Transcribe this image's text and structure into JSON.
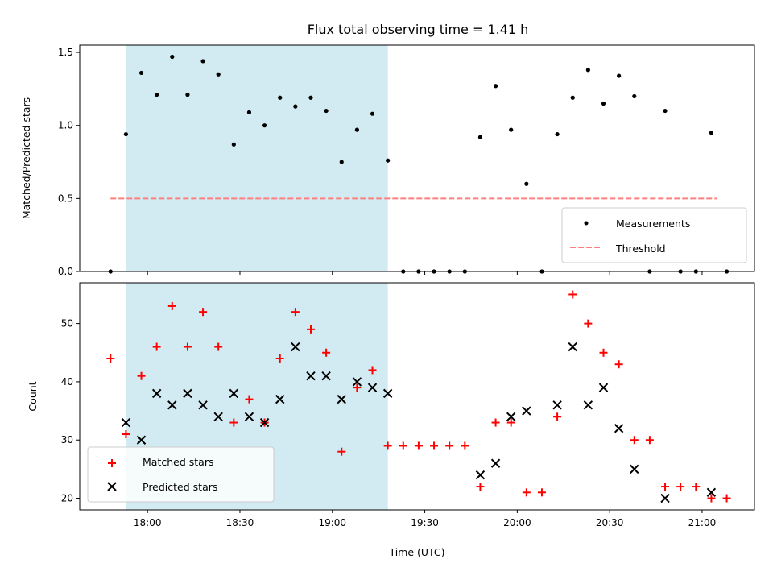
{
  "chart_data": [
    {
      "type": "scatter",
      "title": "Flux total observing time = 1.41 h",
      "xlabel": "",
      "ylabel": "Matched/Predicted stars",
      "ylim": [
        0,
        1.55
      ],
      "yticks": [
        "0.0",
        "0.5",
        "1.0",
        "1.5"
      ],
      "shaded_region": {
        "start": "17:53",
        "end": "19:18",
        "color": "#add8e6"
      },
      "legend_position": "lower-right",
      "threshold": {
        "name": "Threshold",
        "value": 0.5,
        "from": "17:48",
        "to": "21:05",
        "color": "#ff7f7f",
        "style": "dashed"
      },
      "series": [
        {
          "name": "Measurements",
          "color": "#000000",
          "marker": "dot",
          "x": [
            "17:48",
            "17:53",
            "17:58",
            "18:03",
            "18:08",
            "18:13",
            "18:18",
            "18:23",
            "18:28",
            "18:33",
            "18:38",
            "18:43",
            "18:48",
            "18:53",
            "18:58",
            "19:03",
            "19:08",
            "19:13",
            "19:18",
            "19:23",
            "19:28",
            "19:33",
            "19:38",
            "19:43",
            "19:48",
            "19:53",
            "19:58",
            "20:03",
            "20:08",
            "20:13",
            "20:18",
            "20:23",
            "20:28",
            "20:33",
            "20:38",
            "20:43",
            "20:48",
            "20:53",
            "20:58",
            "21:03",
            "21:08"
          ],
          "values": [
            0,
            0.94,
            1.36,
            1.21,
            1.47,
            1.21,
            1.44,
            1.35,
            0.87,
            1.09,
            1.0,
            1.19,
            1.13,
            1.19,
            1.1,
            0.75,
            0.97,
            1.08,
            0.76,
            0,
            0,
            0,
            0,
            0,
            0.92,
            1.27,
            0.97,
            0.6,
            0,
            0.94,
            1.19,
            1.38,
            1.15,
            1.34,
            1.2,
            0,
            1.1,
            0,
            0,
            0.95,
            0
          ]
        }
      ]
    },
    {
      "type": "scatter",
      "title": "",
      "xlabel": "Time (UTC)",
      "ylabel": "Count",
      "ylim": [
        18,
        57
      ],
      "yticks": [
        "20",
        "30",
        "40",
        "50"
      ],
      "xticks": [
        "18:00",
        "18:30",
        "19:00",
        "19:30",
        "20:00",
        "20:30",
        "21:00"
      ],
      "xlim": [
        "17:38",
        "21:17"
      ],
      "legend_position": "lower-left",
      "series": [
        {
          "name": "Matched stars",
          "color": "#ff0000",
          "marker": "plus",
          "x": [
            "17:48",
            "17:53",
            "17:58",
            "18:03",
            "18:08",
            "18:13",
            "18:18",
            "18:23",
            "18:28",
            "18:33",
            "18:38",
            "18:43",
            "18:48",
            "18:53",
            "18:58",
            "19:03",
            "19:08",
            "19:13",
            "19:18",
            "19:23",
            "19:28",
            "19:33",
            "19:38",
            "19:43",
            "19:48",
            "19:53",
            "19:58",
            "20:03",
            "20:08",
            "20:13",
            "20:18",
            "20:23",
            "20:28",
            "20:33",
            "20:38",
            "20:43",
            "20:48",
            "20:53",
            "20:58",
            "21:03",
            "21:08"
          ],
          "values": [
            44,
            31,
            41,
            46,
            53,
            46,
            52,
            46,
            33,
            37,
            33,
            44,
            52,
            49,
            45,
            28,
            39,
            42,
            29,
            29,
            29,
            29,
            29,
            29,
            22,
            33,
            33,
            21,
            21,
            34,
            55,
            50,
            45,
            43,
            30,
            30,
            22,
            22,
            22,
            20,
            20
          ]
        },
        {
          "name": "Predicted stars",
          "color": "#000000",
          "marker": "x",
          "x": [
            "17:53",
            "17:58",
            "18:03",
            "18:08",
            "18:13",
            "18:18",
            "18:23",
            "18:28",
            "18:33",
            "18:38",
            "18:43",
            "18:48",
            "18:53",
            "18:58",
            "19:03",
            "19:08",
            "19:13",
            "19:18",
            "19:48",
            "19:53",
            "19:58",
            "20:03",
            "20:13",
            "20:18",
            "20:23",
            "20:28",
            "20:33",
            "20:38",
            "20:48",
            "21:03"
          ],
          "values": [
            33,
            30,
            38,
            36,
            38,
            36,
            34,
            38,
            34,
            33,
            37,
            46,
            41,
            41,
            37,
            40,
            39,
            38,
            24,
            26,
            34,
            35,
            36,
            46,
            36,
            39,
            32,
            25,
            20,
            21
          ]
        }
      ]
    }
  ]
}
